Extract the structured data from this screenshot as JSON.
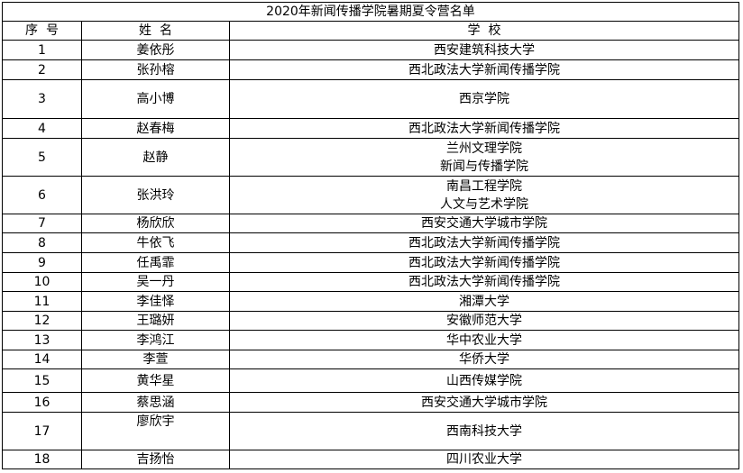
{
  "title": "2020年新闻传播学院暑期夏令营名单",
  "headers": {
    "index": "序  号",
    "name": "姓  名",
    "school": "学  校"
  },
  "rows": [
    {
      "index": "1",
      "name": "姜依彤",
      "school": [
        "西安建筑科技大学"
      ]
    },
    {
      "index": "2",
      "name": "张孙榕",
      "school": [
        "西北政法大学新闻传播学院"
      ]
    },
    {
      "index": "3",
      "name": "高小博",
      "school": [
        "西京学院"
      ]
    },
    {
      "index": "4",
      "name": "赵春梅",
      "school": [
        "西北政法大学新闻传播学院"
      ]
    },
    {
      "index": "5",
      "name": "赵静",
      "school": [
        "兰州文理学院",
        "新闻与传播学院"
      ]
    },
    {
      "index": "6",
      "name": "张洪玲",
      "school": [
        "南昌工程学院",
        "人文与艺术学院"
      ]
    },
    {
      "index": "7",
      "name": "杨欣欣",
      "school": [
        "西安交通大学城市学院"
      ]
    },
    {
      "index": "8",
      "name": "牛依飞",
      "school": [
        "西北政法大学新闻传播学院"
      ]
    },
    {
      "index": "9",
      "name": "任禹霏",
      "school": [
        "西北政法大学新闻传播学院"
      ]
    },
    {
      "index": "10",
      "name": "吴一丹",
      "school": [
        "西北政法大学新闻传播学院"
      ]
    },
    {
      "index": "11",
      "name": "李佳怿",
      "school": [
        "湘潭大学"
      ]
    },
    {
      "index": "12",
      "name": "王璐妍",
      "school": [
        "安徽师范大学"
      ]
    },
    {
      "index": "13",
      "name": "李鸿江",
      "school": [
        "华中农业大学"
      ]
    },
    {
      "index": "14",
      "name": "李萱",
      "school": [
        "华侨大学"
      ]
    },
    {
      "index": "15",
      "name": "黄华星",
      "school": [
        "山西传媒学院"
      ]
    },
    {
      "index": "16",
      "name": "蔡思涵",
      "school": [
        "西安交通大学城市学院"
      ]
    },
    {
      "index": "17",
      "name": "廖欣宇",
      "school": [
        "西南科技大学"
      ]
    },
    {
      "index": "18",
      "name": "吉扬怡",
      "school": [
        "四川农业大学"
      ]
    }
  ]
}
